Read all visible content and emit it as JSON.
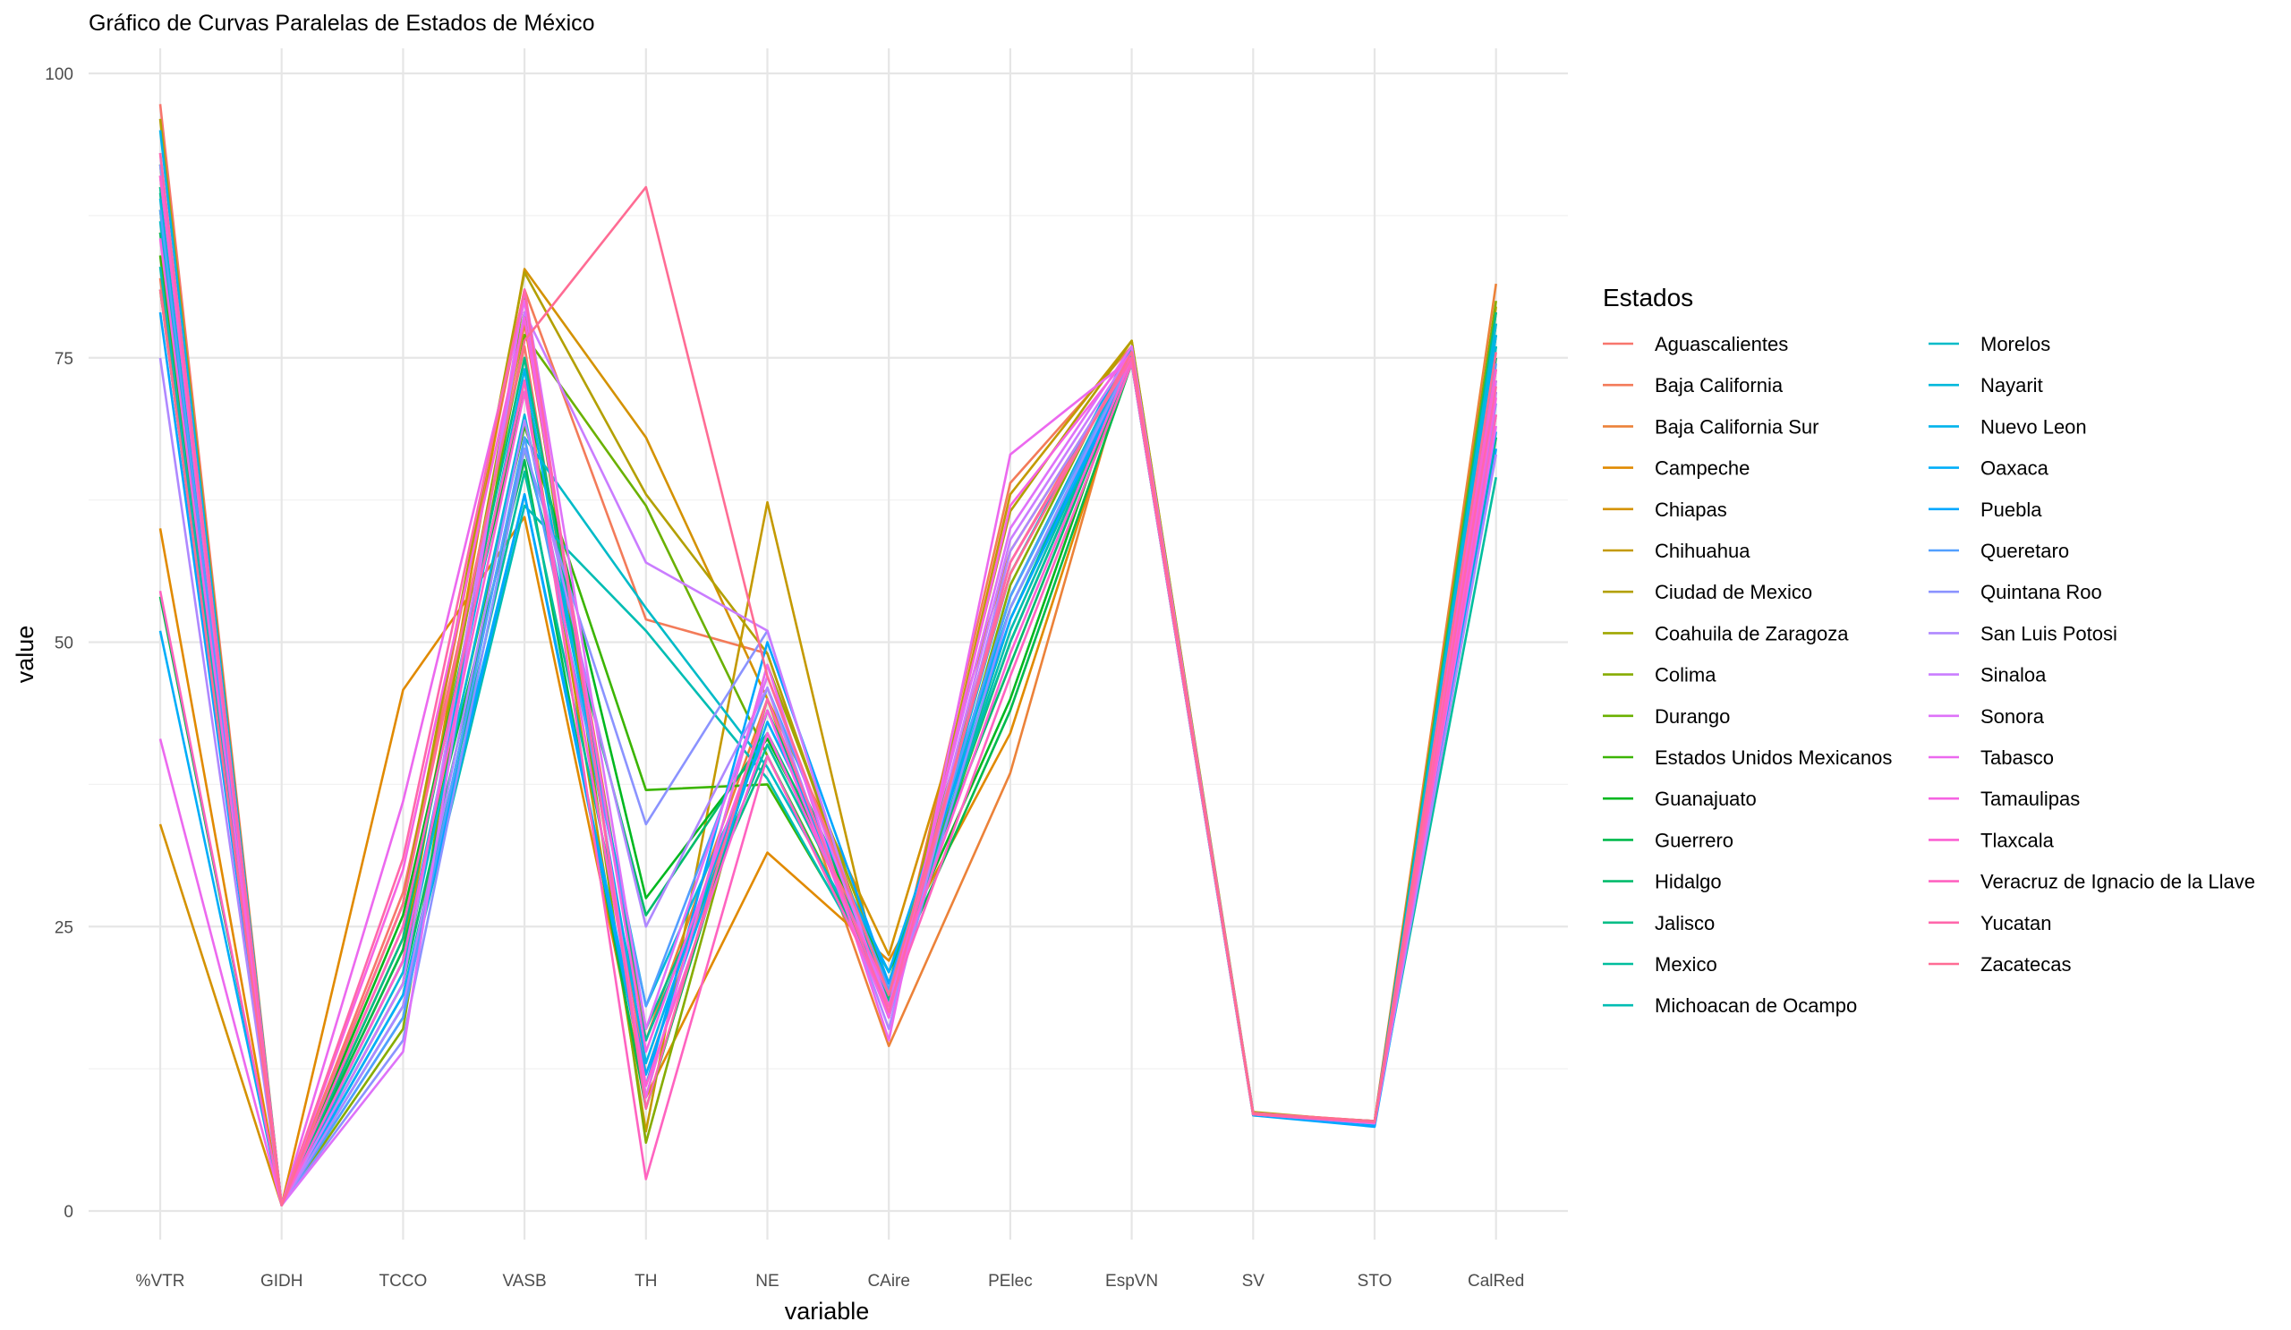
{
  "chart_data": {
    "type": "line",
    "title": "Gráfico de Curvas Paralelas de Estados de México",
    "xlabel": "variable",
    "ylabel": "value",
    "ylim": [
      0,
      100
    ],
    "yticks": [
      "0",
      "25",
      "50",
      "75",
      "100"
    ],
    "grid": true,
    "legend_title": "Estados",
    "legend_position": "right",
    "categories": [
      "%VTR",
      "GIDH",
      "TCCO",
      "VASB",
      "TH",
      "NE",
      "CAire",
      "PElec",
      "EspVN",
      "SV",
      "STO",
      "CalRed"
    ],
    "series": [
      {
        "name": "Aguascalientes",
        "color": "#F8766D",
        "values": [
          97.3,
          0.5,
          28.0,
          76.0,
          12.0,
          44.0,
          19.0,
          57.0,
          75.5,
          8.6,
          7.8,
          75.0
        ]
      },
      {
        "name": "Baja California",
        "color": "#F37B59",
        "values": [
          82.0,
          0.5,
          27.0,
          81.0,
          52.0,
          49.0,
          18.0,
          64.0,
          76.0,
          8.5,
          7.7,
          72.0
        ]
      },
      {
        "name": "Baja California Sur",
        "color": "#EC8239",
        "values": [
          91.0,
          0.5,
          24.0,
          78.0,
          15.0,
          45.0,
          14.5,
          38.5,
          76.0,
          8.5,
          7.9,
          81.5
        ]
      },
      {
        "name": "Campeche",
        "color": "#E18A00",
        "values": [
          60.0,
          0.5,
          45.8,
          61.0,
          10.0,
          31.5,
          22.0,
          42.0,
          75.0,
          8.6,
          7.9,
          79.0
        ]
      },
      {
        "name": "Chiapas",
        "color": "#D49200",
        "values": [
          34.0,
          0.5,
          22.0,
          82.8,
          68.0,
          45.0,
          22.5,
          58.0,
          75.0,
          8.4,
          7.8,
          70.0
        ]
      },
      {
        "name": "Chihuahua",
        "color": "#C49A00",
        "values": [
          86.0,
          0.5,
          25.0,
          73.0,
          7.0,
          62.3,
          17.0,
          63.0,
          76.5,
          8.6,
          7.7,
          74.0
        ]
      },
      {
        "name": "Ciudad de Mexico",
        "color": "#B3A000",
        "values": [
          96.0,
          0.5,
          27.0,
          82.5,
          63.0,
          49.0,
          18.5,
          61.5,
          76.5,
          8.7,
          7.8,
          79.5
        ]
      },
      {
        "name": "Coahuila de Zaragoza",
        "color": "#9FA700",
        "values": [
          90.0,
          0.5,
          23.0,
          79.0,
          10.0,
          48.0,
          20.0,
          56.0,
          76.0,
          8.5,
          7.8,
          78.0
        ]
      },
      {
        "name": "Colima",
        "color": "#87AC00",
        "values": [
          92.0,
          0.5,
          16.0,
          80.5,
          6.0,
          45.0,
          17.0,
          55.0,
          76.0,
          8.6,
          7.7,
          80.0
        ]
      },
      {
        "name": "Durango",
        "color": "#6AB100",
        "values": [
          81.0,
          0.5,
          20.0,
          77.0,
          62.0,
          40.0,
          19.0,
          54.0,
          75.5,
          8.5,
          7.8,
          76.0
        ]
      },
      {
        "name": "Estados Unidos Mexicanos",
        "color": "#3BB500",
        "values": [
          84.0,
          0.5,
          22.0,
          69.0,
          37.0,
          37.5,
          19.5,
          50.0,
          75.0,
          8.6,
          7.8,
          73.0
        ]
      },
      {
        "name": "Guanajuato",
        "color": "#00B81F",
        "values": [
          88.0,
          0.5,
          26.0,
          72.0,
          27.5,
          41.5,
          21.0,
          45.0,
          75.5,
          8.6,
          7.8,
          77.0
        ]
      },
      {
        "name": "Guerrero",
        "color": "#00BA4C",
        "values": [
          54.0,
          0.5,
          23.0,
          66.0,
          9.0,
          44.0,
          20.0,
          44.0,
          74.5,
          8.5,
          7.9,
          68.0
        ]
      },
      {
        "name": "Hidalgo",
        "color": "#00BC6B",
        "values": [
          86.0,
          0.5,
          20.0,
          67.0,
          26.0,
          42.0,
          21.0,
          48.0,
          75.0,
          8.6,
          7.8,
          75.0
        ]
      },
      {
        "name": "Jalisco",
        "color": "#00BD86",
        "values": [
          89.5,
          0.5,
          24.0,
          75.0,
          16.0,
          40.0,
          18.5,
          52.0,
          75.5,
          8.6,
          7.8,
          79.0
        ]
      },
      {
        "name": "Mexico",
        "color": "#00BE9E",
        "values": [
          90.0,
          0.5,
          19.0,
          65.0,
          15.0,
          41.0,
          20.0,
          50.0,
          75.0,
          8.6,
          7.8,
          64.5
        ]
      },
      {
        "name": "Michoacan de Ocampo",
        "color": "#00BDB3",
        "values": [
          83.0,
          0.5,
          18.0,
          62.0,
          51.0,
          38.0,
          19.0,
          51.0,
          75.0,
          8.5,
          7.8,
          72.0
        ]
      },
      {
        "name": "Morelos",
        "color": "#00BBC8",
        "values": [
          87.0,
          0.5,
          17.0,
          68.0,
          53.0,
          39.0,
          20.0,
          53.0,
          75.0,
          8.6,
          7.8,
          76.0
        ]
      },
      {
        "name": "Nayarit",
        "color": "#00B8DB",
        "values": [
          89.0,
          0.5,
          21.0,
          70.0,
          18.0,
          42.0,
          19.0,
          54.0,
          75.5,
          8.6,
          7.8,
          78.0
        ]
      },
      {
        "name": "Nuevo Leon",
        "color": "#00B3EB",
        "values": [
          95.0,
          0.5,
          22.0,
          74.0,
          13.0,
          44.0,
          18.0,
          56.0,
          76.0,
          8.6,
          7.8,
          77.0
        ]
      },
      {
        "name": "Oaxaca",
        "color": "#00AEF9",
        "values": [
          51.0,
          0.5,
          19.0,
          63.0,
          12.0,
          43.0,
          21.0,
          53.0,
          74.5,
          8.5,
          7.6,
          68.5
        ]
      },
      {
        "name": "Puebla",
        "color": "#00A7FF",
        "values": [
          79.0,
          0.5,
          18.0,
          63.0,
          11.0,
          50.0,
          20.0,
          52.0,
          74.5,
          8.4,
          7.4,
          67.0
        ]
      },
      {
        "name": "Queretaro",
        "color": "#529FFF",
        "values": [
          88.0,
          0.5,
          17.0,
          68.0,
          18.0,
          46.0,
          19.5,
          54.0,
          75.0,
          8.6,
          7.7,
          74.5
        ]
      },
      {
        "name": "Quintana Roo",
        "color": "#8B93FF",
        "values": [
          92.0,
          0.5,
          15.0,
          67.0,
          34.0,
          51.0,
          17.0,
          53.0,
          75.0,
          8.5,
          7.8,
          71.0
        ]
      },
      {
        "name": "San Luis Potosi",
        "color": "#AF88FF",
        "values": [
          75.0,
          0.5,
          18.0,
          69.5,
          25.0,
          46.0,
          16.0,
          58.0,
          75.0,
          8.5,
          7.7,
          66.5
        ]
      },
      {
        "name": "Sinaloa",
        "color": "#CA7DFF",
        "values": [
          91.0,
          0.5,
          20.0,
          79.0,
          57.0,
          51.0,
          17.0,
          59.0,
          75.5,
          8.6,
          7.8,
          72.0
        ]
      },
      {
        "name": "Sonora",
        "color": "#DE72F9",
        "values": [
          93.0,
          0.5,
          14.0,
          81.0,
          16.0,
          47.0,
          18.0,
          60.0,
          76.0,
          8.6,
          7.8,
          73.0
        ]
      },
      {
        "name": "Tabasco",
        "color": "#EC69EF",
        "values": [
          41.5,
          0.5,
          36.0,
          80.0,
          10.0,
          48.0,
          15.0,
          66.5,
          75.0,
          8.5,
          7.7,
          69.0
        ]
      },
      {
        "name": "Tamaulipas",
        "color": "#F663E2",
        "values": [
          85.5,
          0.5,
          30.0,
          78.5,
          14.0,
          44.0,
          17.0,
          62.0,
          75.5,
          8.5,
          7.8,
          71.5
        ]
      },
      {
        "name": "Tlaxcala",
        "color": "#FC61D3",
        "values": [
          91.0,
          0.5,
          22.0,
          72.0,
          11.0,
          42.0,
          19.0,
          49.0,
          75.0,
          8.5,
          7.8,
          74.0
        ]
      },
      {
        "name": "Veracruz de Ignacio de la Llave",
        "color": "#FF63C0",
        "values": [
          54.5,
          0.5,
          25.0,
          73.0,
          2.8,
          40.0,
          18.0,
          47.0,
          74.5,
          8.5,
          7.8,
          70.0
        ]
      },
      {
        "name": "Yucatan",
        "color": "#FF67AB",
        "values": [
          93.0,
          0.5,
          31.0,
          81.0,
          9.0,
          45.0,
          17.5,
          57.0,
          75.0,
          8.5,
          7.8,
          72.5
        ]
      },
      {
        "name": "Zacatecas",
        "color": "#FF6C94",
        "values": [
          81.0,
          0.5,
          27.0,
          76.5,
          90.0,
          47.0,
          19.0,
          56.0,
          75.5,
          8.6,
          7.9,
          75.5
        ]
      }
    ]
  }
}
